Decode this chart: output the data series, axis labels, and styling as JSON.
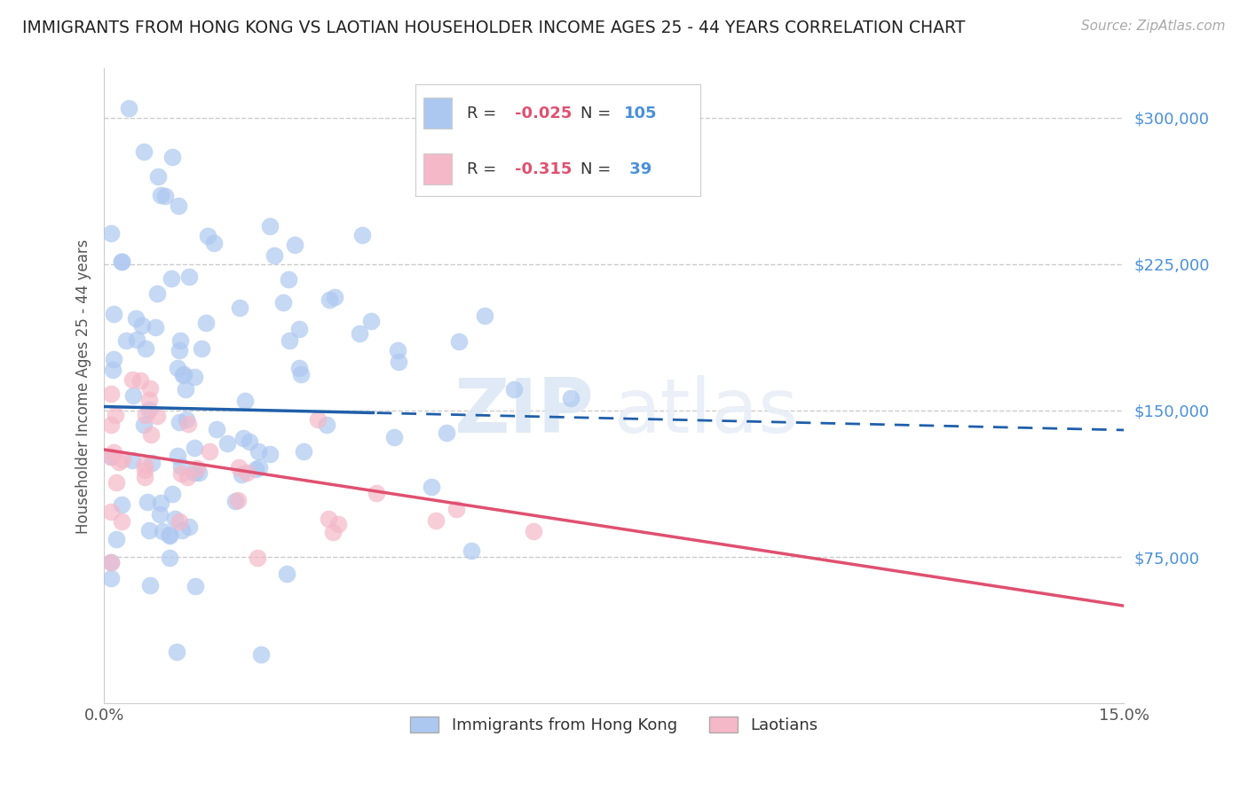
{
  "title": "IMMIGRANTS FROM HONG KONG VS LAOTIAN HOUSEHOLDER INCOME AGES 25 - 44 YEARS CORRELATION CHART",
  "source": "Source: ZipAtlas.com",
  "ylabel": "Householder Income Ages 25 - 44 years",
  "xlim": [
    0.0,
    0.15
  ],
  "ylim": [
    0,
    325000
  ],
  "yticks": [
    75000,
    150000,
    225000,
    300000
  ],
  "ytick_labels": [
    "$75,000",
    "$150,000",
    "$225,000",
    "$300,000"
  ],
  "xticks": [
    0.0,
    0.15
  ],
  "xtick_labels": [
    "0.0%",
    "15.0%"
  ],
  "hk_R": -0.025,
  "hk_N": 105,
  "lao_R": -0.315,
  "lao_N": 39,
  "hk_color": "#adc8f0",
  "lao_color": "#f5b8c8",
  "hk_line_color": "#1f5faa",
  "lao_line_color": "#e05070",
  "grid_color": "#cccccc",
  "background_color": "#ffffff",
  "watermark_zip": "ZIP",
  "watermark_atlas": "atlas",
  "legend_label_hk": "Immigrants from Hong Kong",
  "legend_label_lao": "Laotians",
  "hk_line_solid_end": 0.04,
  "hk_line_dashed_start": 0.04,
  "lao_line_y0": 130000,
  "lao_line_y1": 50000,
  "hk_line_y0": 152000,
  "hk_line_y1": 140000,
  "R_color": "#e05070",
  "N_color": "#4a90d9",
  "legend_text_color": "#333333"
}
